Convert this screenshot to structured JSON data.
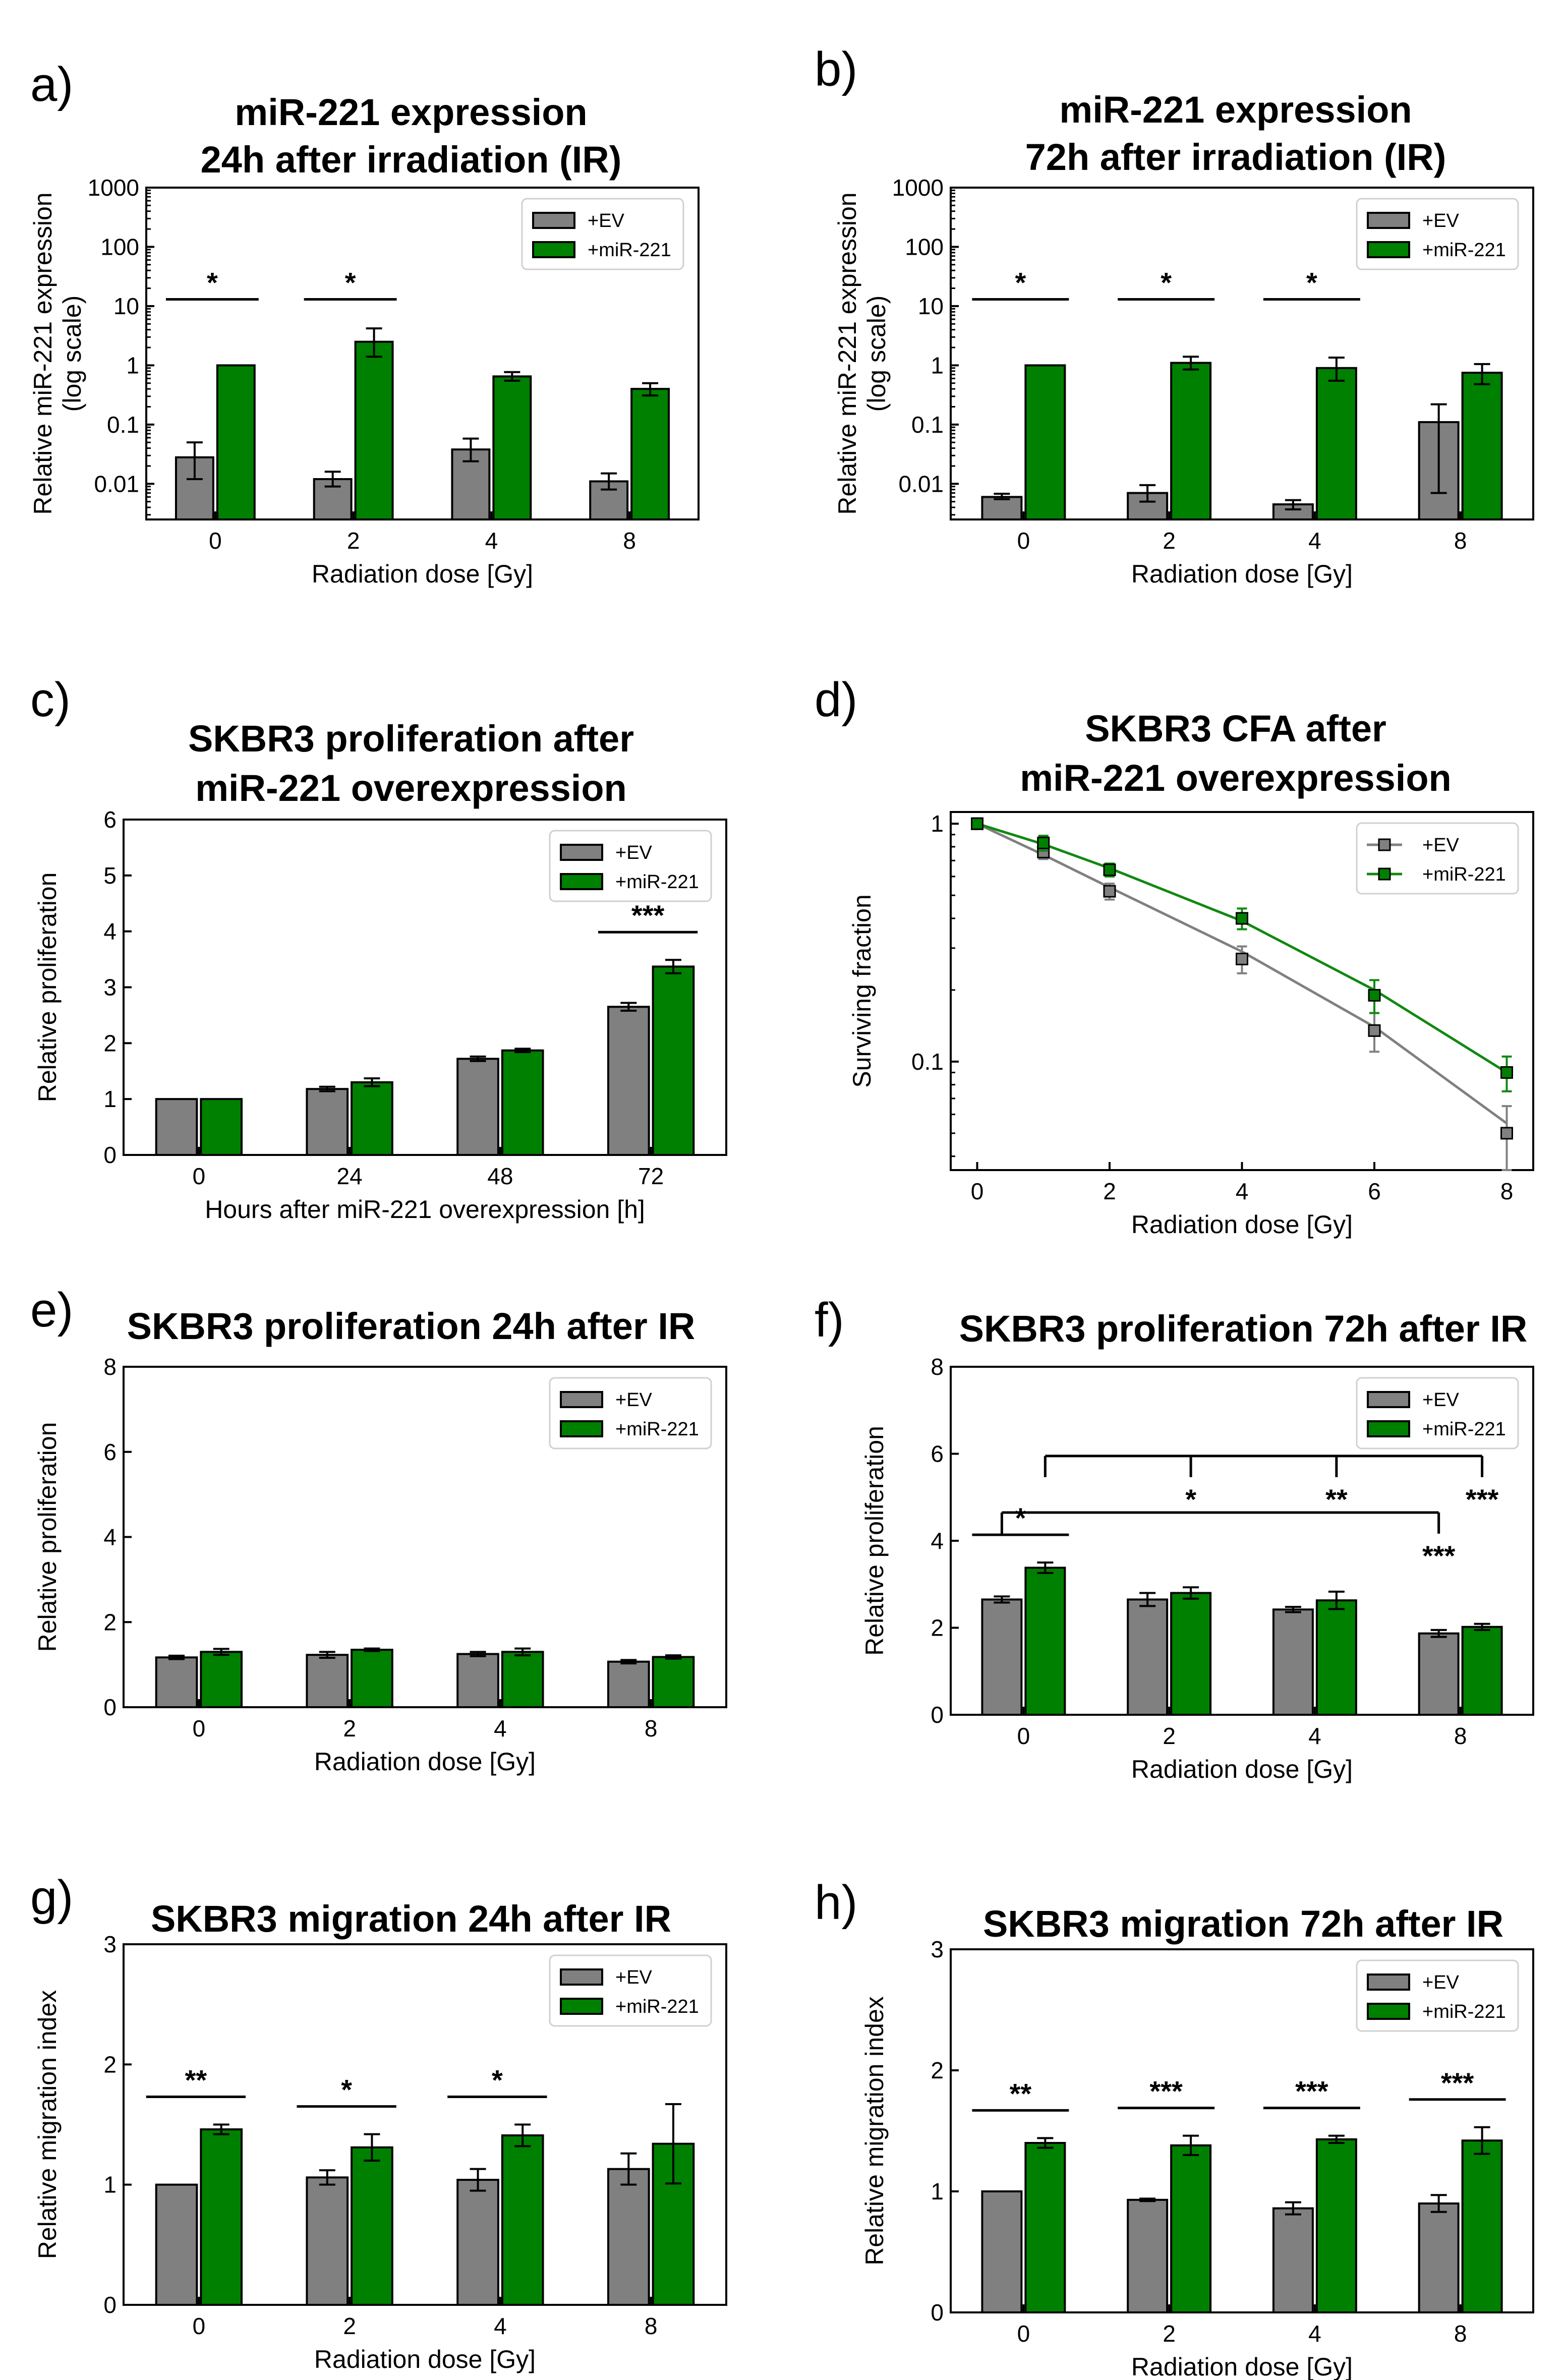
{
  "colors": {
    "ev": "#808080",
    "mir": "#008000",
    "ev_line": "#808080",
    "mir_line": "#118811"
  },
  "chart_data": [
    {
      "id": "a",
      "panel_label": "a)",
      "type": "bar",
      "yscale": "log",
      "title": [
        "miR-221 expression",
        "24h after irradiation (IR)"
      ],
      "xlabel": "Radiation dose [Gy]",
      "ylabel": [
        "Relative miR-221 expression",
        "(log scale)"
      ],
      "ylim": [
        0.0025,
        1000
      ],
      "yticks": [
        0.01,
        0.1,
        1,
        10,
        100,
        1000
      ],
      "ytick_labels": [
        "0.01",
        "0.1",
        "1",
        "10",
        "100",
        "1000"
      ],
      "categories": [
        "0",
        "2",
        "4",
        "8"
      ],
      "series": [
        {
          "name": "+EV",
          "values": [
            0.028,
            0.012,
            0.038,
            0.011
          ],
          "err_low": [
            0.012,
            0.009,
            0.024,
            0.008
          ],
          "err_high": [
            0.05,
            0.016,
            0.058,
            0.015
          ]
        },
        {
          "name": "+miR-221",
          "values": [
            1.0,
            2.5,
            0.65,
            0.4
          ],
          "err_low": [
            1.0,
            1.4,
            0.55,
            0.31
          ],
          "err_high": [
            1.0,
            4.2,
            0.77,
            0.5
          ]
        }
      ],
      "significance": [
        {
          "category": 0,
          "label": "*"
        },
        {
          "category": 1,
          "label": "*"
        }
      ],
      "legend": [
        "+EV",
        "+miR-221"
      ]
    },
    {
      "id": "b",
      "panel_label": "b)",
      "type": "bar",
      "yscale": "log",
      "title": [
        "miR-221 expression",
        "72h after irradiation (IR)"
      ],
      "xlabel": "Radiation dose [Gy]",
      "ylabel": [
        "Relative miR-221 expression",
        "(log scale)"
      ],
      "ylim": [
        0.0025,
        1000
      ],
      "yticks": [
        0.01,
        0.1,
        1,
        10,
        100,
        1000
      ],
      "ytick_labels": [
        "0.01",
        "0.1",
        "1",
        "10",
        "100",
        "1000"
      ],
      "categories": [
        "0",
        "2",
        "4",
        "8"
      ],
      "series": [
        {
          "name": "+EV",
          "values": [
            0.006,
            0.007,
            0.0045,
            0.11
          ],
          "err_low": [
            0.0055,
            0.005,
            0.0037,
            0.007
          ],
          "err_high": [
            0.0068,
            0.0095,
            0.0053,
            0.22
          ]
        },
        {
          "name": "+miR-221",
          "values": [
            1.0,
            1.1,
            0.9,
            0.75
          ],
          "err_low": [
            1.0,
            0.85,
            0.55,
            0.48
          ],
          "err_high": [
            1.0,
            1.4,
            1.35,
            1.05
          ]
        }
      ],
      "significance": [
        {
          "category": 0,
          "label": "*"
        },
        {
          "category": 1,
          "label": "*"
        },
        {
          "category": 2,
          "label": "*"
        }
      ],
      "legend": [
        "+EV",
        "+miR-221"
      ]
    },
    {
      "id": "c",
      "panel_label": "c)",
      "type": "bar",
      "yscale": "linear",
      "title": [
        "SKBR3 proliferation after",
        "miR-221 overexpression"
      ],
      "xlabel": "Hours after miR-221 overexpression [h]",
      "ylabel": [
        "Relative proliferation"
      ],
      "ylim": [
        0,
        6
      ],
      "yticks": [
        0,
        1,
        2,
        3,
        4,
        5,
        6
      ],
      "ytick_labels": [
        "0",
        "1",
        "2",
        "3",
        "4",
        "5",
        "6"
      ],
      "categories": [
        "0",
        "24",
        "48",
        "72"
      ],
      "series": [
        {
          "name": "+EV",
          "values": [
            1.0,
            1.18,
            1.72,
            2.65
          ],
          "err": [
            0.0,
            0.04,
            0.04,
            0.07
          ]
        },
        {
          "name": "+miR-221",
          "values": [
            1.0,
            1.3,
            1.87,
            3.37
          ],
          "err": [
            0.0,
            0.07,
            0.03,
            0.12
          ]
        }
      ],
      "significance": [
        {
          "category": 3,
          "label": "***"
        }
      ],
      "legend": [
        "+EV",
        "+miR-221"
      ]
    },
    {
      "id": "d",
      "panel_label": "d)",
      "type": "line",
      "yscale": "log",
      "title": [
        "SKBR3 CFA after",
        "miR-221 overexpression"
      ],
      "xlabel": "Radiation dose [Gy]",
      "ylabel": [
        "Surviving fraction"
      ],
      "xlim": [
        -0.4,
        8.4
      ],
      "ylim": [
        0.035,
        1.12
      ],
      "xticks": [
        0,
        2,
        4,
        6,
        8
      ],
      "xtick_labels": [
        "0",
        "2",
        "4",
        "6",
        "8"
      ],
      "yticks": [
        0.1,
        1
      ],
      "ytick_labels": [
        "0.1",
        "1"
      ],
      "x": [
        0,
        1,
        2,
        4,
        6,
        8
      ],
      "series": [
        {
          "name": "+EV",
          "values": [
            1.0,
            0.76,
            0.52,
            0.27,
            0.135,
            0.05
          ],
          "err": [
            0.02,
            0.05,
            0.04,
            0.035,
            0.025,
            0.015
          ],
          "fit": [
            1.0,
            0.74,
            0.54,
            0.29,
            0.14,
            0.055
          ]
        },
        {
          "name": "+miR-221",
          "values": [
            1.0,
            0.83,
            0.64,
            0.4,
            0.19,
            0.09
          ],
          "err": [
            0.02,
            0.06,
            0.04,
            0.04,
            0.03,
            0.015
          ],
          "fit": [
            1.0,
            0.82,
            0.65,
            0.39,
            0.2,
            0.09
          ]
        }
      ],
      "legend": [
        "+EV",
        "+miR-221"
      ]
    },
    {
      "id": "e",
      "panel_label": "e)",
      "type": "bar",
      "yscale": "linear",
      "title": [
        "SKBR3 proliferation 24h after IR"
      ],
      "xlabel": "Radiation dose [Gy]",
      "ylabel": [
        "Relative proliferation"
      ],
      "ylim": [
        0,
        8
      ],
      "yticks": [
        0,
        2,
        4,
        6,
        8
      ],
      "ytick_labels": [
        "0",
        "2",
        "4",
        "6",
        "8"
      ],
      "categories": [
        "0",
        "2",
        "4",
        "8"
      ],
      "series": [
        {
          "name": "+EV",
          "values": [
            1.17,
            1.23,
            1.25,
            1.07
          ],
          "err": [
            0.04,
            0.07,
            0.05,
            0.04
          ]
        },
        {
          "name": "+miR-221",
          "values": [
            1.3,
            1.35,
            1.3,
            1.18
          ],
          "err": [
            0.07,
            0.03,
            0.08,
            0.04
          ]
        }
      ],
      "significance": [],
      "legend": [
        "+EV",
        "+miR-221"
      ]
    },
    {
      "id": "f",
      "panel_label": "f)",
      "type": "bar",
      "yscale": "linear",
      "title": [
        "SKBR3 proliferation 72h after IR"
      ],
      "xlabel": "Radiation dose [Gy]",
      "ylabel": [
        "Relative proliferation"
      ],
      "ylim": [
        0,
        8
      ],
      "yticks": [
        0,
        2,
        4,
        6,
        8
      ],
      "ytick_labels": [
        "0",
        "2",
        "4",
        "6",
        "8"
      ],
      "categories": [
        "0",
        "2",
        "4",
        "8"
      ],
      "series": [
        {
          "name": "+EV",
          "values": [
            2.65,
            2.65,
            2.42,
            1.87
          ],
          "err": [
            0.07,
            0.15,
            0.06,
            0.08
          ]
        },
        {
          "name": "+miR-221",
          "values": [
            3.38,
            2.8,
            2.63,
            2.02
          ],
          "err": [
            0.12,
            0.13,
            0.2,
            0.07
          ]
        }
      ],
      "significance": [
        {
          "category": 0,
          "label": "*"
        }
      ],
      "brackets": [
        {
          "series": 1,
          "y": 5.95,
          "from": 0,
          "to": [
            1,
            2,
            3
          ],
          "labels": [
            "*",
            "**",
            "***"
          ]
        },
        {
          "series": 0,
          "y": 4.65,
          "from": 0,
          "to": [
            3
          ],
          "labels": [
            "***"
          ]
        }
      ],
      "legend": [
        "+EV",
        "+miR-221"
      ]
    },
    {
      "id": "g",
      "panel_label": "g)",
      "type": "bar",
      "yscale": "linear",
      "title": [
        "SKBR3 migration 24h after IR"
      ],
      "xlabel": "Radiation dose [Gy]",
      "ylabel": [
        "Relative migration index"
      ],
      "ylim": [
        0,
        3
      ],
      "yticks": [
        0,
        1,
        2,
        3
      ],
      "ytick_labels": [
        "0",
        "1",
        "2",
        "3"
      ],
      "categories": [
        "0",
        "2",
        "4",
        "8"
      ],
      "series": [
        {
          "name": "+EV",
          "values": [
            1.0,
            1.06,
            1.04,
            1.13
          ],
          "err": [
            0.0,
            0.06,
            0.09,
            0.13
          ]
        },
        {
          "name": "+miR-221",
          "values": [
            1.46,
            1.31,
            1.41,
            1.34
          ],
          "err": [
            0.04,
            0.11,
            0.09,
            0.33
          ]
        }
      ],
      "significance": [
        {
          "category": 0,
          "label": "**"
        },
        {
          "category": 1,
          "label": "*"
        },
        {
          "category": 2,
          "label": "*"
        }
      ],
      "legend": [
        "+EV",
        "+miR-221"
      ]
    },
    {
      "id": "h",
      "panel_label": "h)",
      "type": "bar",
      "yscale": "linear",
      "title": [
        "SKBR3 migration 72h after IR"
      ],
      "xlabel": "Radiation dose [Gy]",
      "ylabel": [
        "Relative migration index"
      ],
      "ylim": [
        0,
        3
      ],
      "yticks": [
        0,
        1,
        2,
        3
      ],
      "ytick_labels": [
        "0",
        "1",
        "2",
        "3"
      ],
      "categories": [
        "0",
        "2",
        "4",
        "8"
      ],
      "series": [
        {
          "name": "+EV",
          "values": [
            1.0,
            0.93,
            0.86,
            0.9
          ],
          "err": [
            0.0,
            0.01,
            0.05,
            0.07
          ]
        },
        {
          "name": "+miR-221",
          "values": [
            1.4,
            1.38,
            1.43,
            1.42
          ],
          "err": [
            0.04,
            0.08,
            0.03,
            0.11
          ]
        }
      ],
      "significance": [
        {
          "category": 0,
          "label": "**"
        },
        {
          "category": 1,
          "label": "***"
        },
        {
          "category": 2,
          "label": "***"
        },
        {
          "category": 3,
          "label": "***"
        }
      ],
      "legend": [
        "+EV",
        "+miR-221"
      ]
    }
  ]
}
